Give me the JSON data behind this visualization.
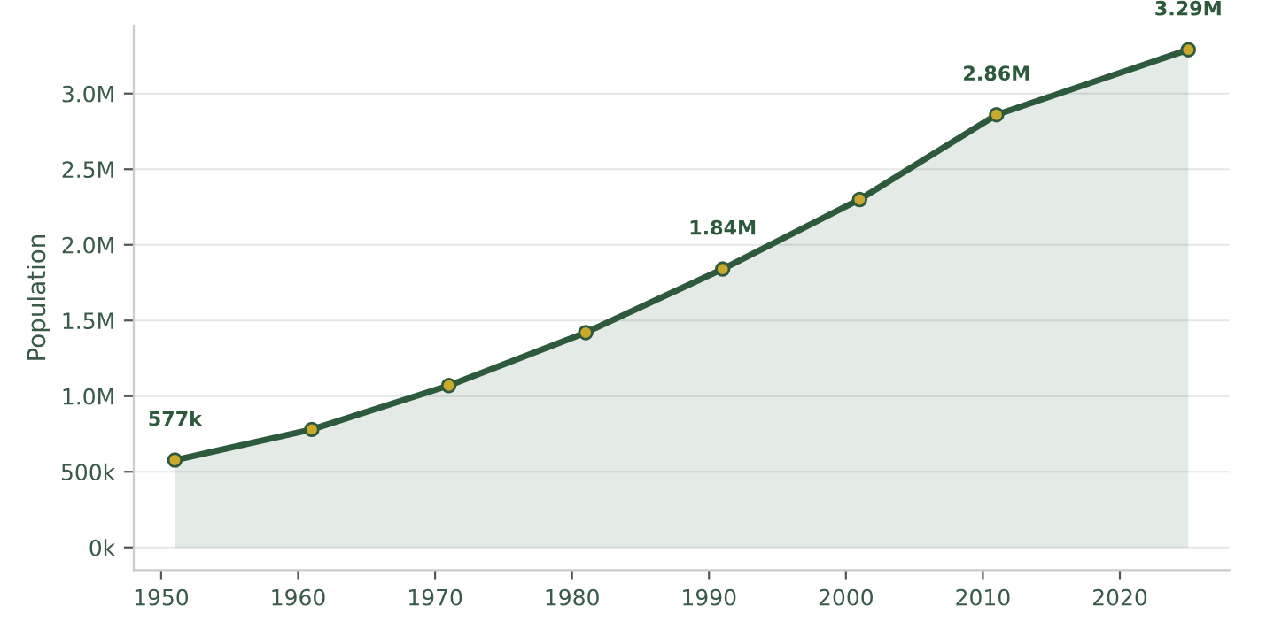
{
  "chart_data": {
    "type": "area",
    "ylabel": "Population",
    "x": [
      1951,
      1961,
      1971,
      1981,
      1991,
      2001,
      2011,
      2025
    ],
    "series": [
      {
        "color": "#2d5a3d",
        "colors": [
          "#c9a92c",
          "#c9a92c",
          "#c9a92c",
          "#c9a92c",
          "#c9a92c",
          "#c9a92c",
          "#c9a92c",
          "#c9a92c"
        ],
        "values": [
          577000,
          780000,
          1070000,
          1420000,
          1840000,
          2300000,
          2860000,
          3290000
        ],
        "value_labels": [
          "577k",
          null,
          null,
          null,
          "1.84M",
          null,
          "2.86M",
          "3.29M"
        ]
      }
    ],
    "xlim": [
      1948,
      2028
    ],
    "xticks": [
      1950,
      1960,
      1970,
      1980,
      1990,
      2000,
      2010,
      2020
    ],
    "ylim": [
      -150000,
      3450000
    ],
    "yticks": [
      {
        "value": 0,
        "label": "0k"
      },
      {
        "value": 500000,
        "label": "500k"
      },
      {
        "value": 1000000,
        "label": "1.0M"
      },
      {
        "value": 1500000,
        "label": "1.5M"
      },
      {
        "value": 2000000,
        "label": "2.0M"
      },
      {
        "value": 2500000,
        "label": "2.5M"
      },
      {
        "value": 3000000,
        "label": "3.0M"
      }
    ],
    "grid": "y",
    "marker": "circle",
    "line_style": "solid",
    "legend": false
  }
}
